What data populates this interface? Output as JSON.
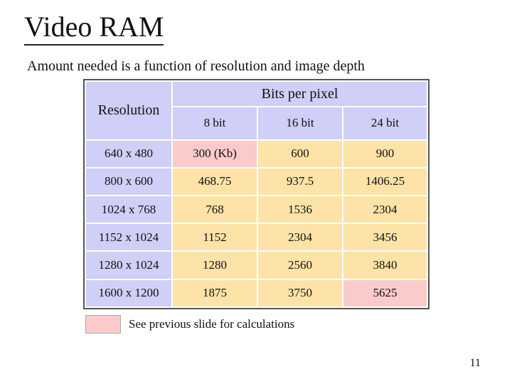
{
  "title": "Video RAM",
  "subtitle": "Amount needed is a function of resolution and image depth",
  "table": {
    "resolution_header": "Resolution",
    "bpp_header": "Bits per pixel",
    "depth_headers": [
      "8 bit",
      "16 bit",
      "24 bit"
    ],
    "rows": [
      {
        "resolution": "640 x 480",
        "values": [
          "300 (Kb)",
          "600",
          "900"
        ],
        "calc": [
          true,
          false,
          false
        ]
      },
      {
        "resolution": "800 x 600",
        "values": [
          "468.75",
          "937.5",
          "1406.25"
        ],
        "calc": [
          false,
          false,
          false
        ]
      },
      {
        "resolution": "1024 x 768",
        "values": [
          "768",
          "1536",
          "2304"
        ],
        "calc": [
          false,
          false,
          false
        ]
      },
      {
        "resolution": "1152 x 1024",
        "values": [
          "1152",
          "2304",
          "3456"
        ],
        "calc": [
          false,
          false,
          false
        ]
      },
      {
        "resolution": "1280 x 1024",
        "values": [
          "1280",
          "2560",
          "3840"
        ],
        "calc": [
          false,
          false,
          false
        ]
      },
      {
        "resolution": "1600 x 1200",
        "values": [
          "1875",
          "3750",
          "5625"
        ],
        "calc": [
          false,
          false,
          true
        ]
      }
    ]
  },
  "legend": {
    "text": "See previous slide for calculations",
    "color": "#fbcaca"
  },
  "page_number": "11",
  "colors": {
    "header": "#cfcff7",
    "value": "#fde3a8",
    "calc": "#fbcaca"
  }
}
